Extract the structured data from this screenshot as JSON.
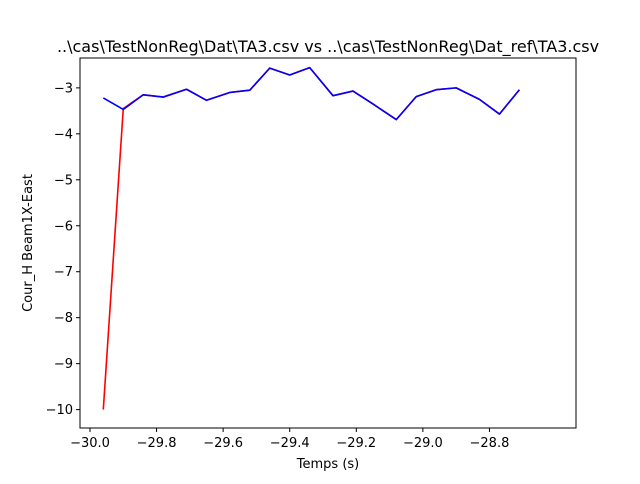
{
  "chart_data": {
    "type": "line",
    "title": "..\\cas\\TestNonReg\\Dat\\TA3.csv vs ..\\cas\\TestNonReg\\Dat_ref\\TA3.csv",
    "xlabel": "Temps (s)",
    "ylabel": "Cour_H Beam1X-East",
    "xlim": [
      -30.03,
      -28.54
    ],
    "ylim": [
      -10.4,
      -2.35
    ],
    "xticks": [
      -30.0,
      -29.8,
      -29.6,
      -29.4,
      -29.2,
      -29.0,
      -28.8
    ],
    "xtick_labels": [
      "−30.0",
      "−29.8",
      "−29.6",
      "−29.4",
      "−29.2",
      "−29.0",
      "−28.8"
    ],
    "yticks": [
      -10,
      -9,
      -8,
      -7,
      -6,
      -5,
      -4,
      -3
    ],
    "ytick_labels": [
      "−10",
      "−9",
      "−8",
      "−7",
      "−6",
      "−5",
      "−4",
      "−3"
    ],
    "grid": false,
    "series": [
      {
        "color": "#ff0000",
        "x": [
          -29.96,
          -29.9,
          -29.84,
          -29.78,
          -29.71,
          -29.65,
          -29.58,
          -29.52,
          -29.46,
          -29.4,
          -29.34,
          -29.27,
          -29.21,
          -29.15,
          -29.08,
          -29.02,
          -28.96,
          -28.9,
          -28.83,
          -28.77,
          -28.71
        ],
        "y": [
          -10.0,
          -3.45,
          -3.15,
          -3.2,
          -3.03,
          -3.27,
          -3.1,
          -3.05,
          -2.57,
          -2.72,
          -2.56,
          -3.17,
          -3.07,
          -3.35,
          -3.69,
          -3.19,
          -3.04,
          -3.0,
          -3.25,
          -3.57,
          -3.04
        ]
      },
      {
        "color": "#0000ff",
        "x": [
          -29.96,
          -29.9,
          -29.84,
          -29.78,
          -29.71,
          -29.65,
          -29.58,
          -29.52,
          -29.46,
          -29.4,
          -29.34,
          -29.27,
          -29.21,
          -29.15,
          -29.08,
          -29.02,
          -28.96,
          -28.9,
          -28.83,
          -28.77,
          -28.71
        ],
        "y": [
          -3.22,
          -3.47,
          -3.15,
          -3.2,
          -3.03,
          -3.27,
          -3.1,
          -3.05,
          -2.57,
          -2.72,
          -2.56,
          -3.17,
          -3.07,
          -3.35,
          -3.69,
          -3.19,
          -3.04,
          -3.0,
          -3.25,
          -3.57,
          -3.04
        ]
      }
    ]
  }
}
